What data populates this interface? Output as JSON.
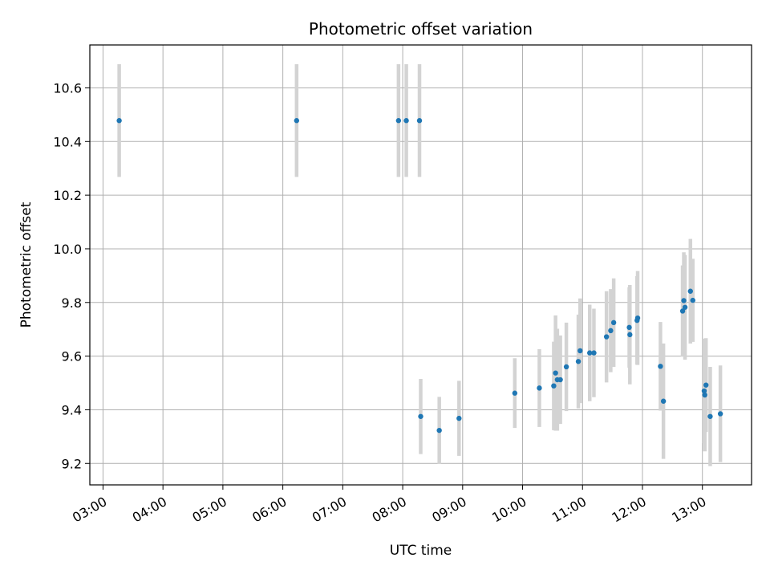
{
  "chart_data": {
    "type": "scatter",
    "title": "Photometric offset variation",
    "xlabel": "UTC time",
    "ylabel": "Photometric offset",
    "x_unit": "hours UTC",
    "xlim": [
      2.78,
      13.82
    ],
    "ylim": [
      9.12,
      10.76
    ],
    "grid": true,
    "x_ticks": [
      {
        "value": 3,
        "label": "03:00"
      },
      {
        "value": 4,
        "label": "04:00"
      },
      {
        "value": 5,
        "label": "05:00"
      },
      {
        "value": 6,
        "label": "06:00"
      },
      {
        "value": 7,
        "label": "07:00"
      },
      {
        "value": 8,
        "label": "08:00"
      },
      {
        "value": 9,
        "label": "09:00"
      },
      {
        "value": 10,
        "label": "10:00"
      },
      {
        "value": 11,
        "label": "11:00"
      },
      {
        "value": 12,
        "label": "12:00"
      },
      {
        "value": 13,
        "label": "13:00"
      }
    ],
    "y_ticks": [
      {
        "value": 9.2,
        "label": "9.2"
      },
      {
        "value": 9.4,
        "label": "9.4"
      },
      {
        "value": 9.6,
        "label": "9.6"
      },
      {
        "value": 9.8,
        "label": "9.8"
      },
      {
        "value": 10.0,
        "label": "10.0"
      },
      {
        "value": 10.2,
        "label": "10.2"
      },
      {
        "value": 10.4,
        "label": "10.4"
      },
      {
        "value": 10.6,
        "label": "10.6"
      }
    ],
    "marker_color": "#1f77b4",
    "errorbar_color": "#d3d3d3",
    "points": [
      {
        "x": 3.27,
        "y": 10.478,
        "err": 0.21
      },
      {
        "x": 6.23,
        "y": 10.478,
        "err": 0.21
      },
      {
        "x": 7.93,
        "y": 10.478,
        "err": 0.21
      },
      {
        "x": 8.06,
        "y": 10.478,
        "err": 0.21
      },
      {
        "x": 8.28,
        "y": 10.478,
        "err": 0.21
      },
      {
        "x": 8.3,
        "y": 9.375,
        "err": 0.14
      },
      {
        "x": 8.61,
        "y": 9.323,
        "err": 0.125
      },
      {
        "x": 8.94,
        "y": 9.368,
        "err": 0.14
      },
      {
        "x": 9.87,
        "y": 9.462,
        "err": 0.13
      },
      {
        "x": 10.28,
        "y": 9.481,
        "err": 0.145
      },
      {
        "x": 10.52,
        "y": 9.489,
        "err": 0.165
      },
      {
        "x": 10.55,
        "y": 9.537,
        "err": 0.215
      },
      {
        "x": 10.58,
        "y": 9.512,
        "err": 0.19
      },
      {
        "x": 10.63,
        "y": 9.512,
        "err": 0.165
      },
      {
        "x": 10.73,
        "y": 9.56,
        "err": 0.165
      },
      {
        "x": 10.93,
        "y": 9.58,
        "err": 0.175
      },
      {
        "x": 10.96,
        "y": 9.62,
        "err": 0.195
      },
      {
        "x": 11.12,
        "y": 9.612,
        "err": 0.18
      },
      {
        "x": 11.19,
        "y": 9.612,
        "err": 0.165
      },
      {
        "x": 11.4,
        "y": 9.672,
        "err": 0.17
      },
      {
        "x": 11.47,
        "y": 9.695,
        "err": 0.155
      },
      {
        "x": 11.52,
        "y": 9.725,
        "err": 0.165
      },
      {
        "x": 11.78,
        "y": 9.707,
        "err": 0.15
      },
      {
        "x": 11.79,
        "y": 9.68,
        "err": 0.185
      },
      {
        "x": 11.91,
        "y": 9.733,
        "err": 0.165
      },
      {
        "x": 11.92,
        "y": 9.742,
        "err": 0.175
      },
      {
        "x": 12.3,
        "y": 9.562,
        "err": 0.165
      },
      {
        "x": 12.35,
        "y": 9.432,
        "err": 0.215
      },
      {
        "x": 12.67,
        "y": 9.768,
        "err": 0.17
      },
      {
        "x": 12.69,
        "y": 9.807,
        "err": 0.18
      },
      {
        "x": 12.71,
        "y": 9.782,
        "err": 0.195
      },
      {
        "x": 12.8,
        "y": 9.842,
        "err": 0.195
      },
      {
        "x": 12.84,
        "y": 9.808,
        "err": 0.155
      },
      {
        "x": 13.03,
        "y": 9.47,
        "err": 0.195
      },
      {
        "x": 13.04,
        "y": 9.455,
        "err": 0.21
      },
      {
        "x": 13.06,
        "y": 9.492,
        "err": 0.175
      },
      {
        "x": 13.13,
        "y": 9.375,
        "err": 0.185
      },
      {
        "x": 13.3,
        "y": 9.385,
        "err": 0.18
      }
    ]
  }
}
